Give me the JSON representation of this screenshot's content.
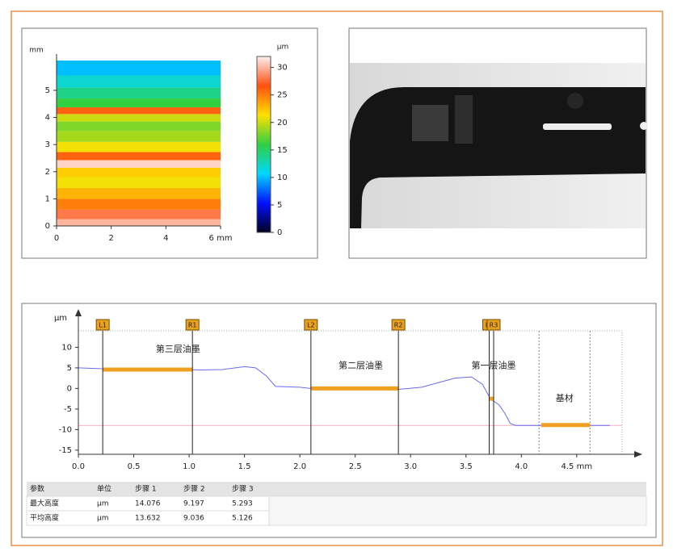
{
  "chart_data": [
    {
      "type": "heatmap",
      "y_label": "mm",
      "colorbar_label": "µm",
      "xlim": [
        0,
        6
      ],
      "xticks": [
        0,
        2,
        4,
        {
          "value": 6,
          "label": "6 mm"
        }
      ],
      "ylim": [
        0,
        6.1
      ],
      "yticks": [
        0,
        1,
        2,
        3,
        4,
        5
      ],
      "zlim": [
        0,
        32
      ],
      "zticks": [
        0,
        5,
        10,
        15,
        20,
        25,
        30
      ],
      "colorscale": [
        "#000020",
        "#0010ff",
        "#00d8ff",
        "#30d040",
        "#ffe000",
        "#ff5010",
        "#fff0f0"
      ],
      "y": [
        0.1,
        0.4,
        0.8,
        1.2,
        1.6,
        2.0,
        2.3,
        2.55,
        2.9,
        3.3,
        3.7,
        4.0,
        4.25,
        4.5,
        4.9,
        5.3,
        5.8
      ],
      "values": [
        30,
        28,
        25,
        23,
        21,
        22,
        31,
        26,
        21,
        19,
        18,
        20,
        26,
        16,
        14,
        12,
        10
      ]
    },
    {
      "type": "line",
      "y_label": "µm",
      "xlim": [
        0,
        4.91
      ],
      "xticks": [
        {
          "value": 0,
          "label": "0.0"
        },
        0.5,
        {
          "value": 1,
          "label": "1.0"
        },
        1.5,
        {
          "value": 2,
          "label": "2.0"
        },
        2.5,
        {
          "value": 3,
          "label": "3.0"
        },
        3.5,
        {
          "value": 4,
          "label": "4.0"
        },
        {
          "value": 4.5,
          "label": "4.5 mm"
        }
      ],
      "ylim": [
        -16,
        14
      ],
      "yticks": [
        10,
        5,
        0,
        -5,
        -10,
        -15
      ],
      "series": [
        {
          "color": "#6a6af0",
          "x": [
            0,
            0.2,
            0.5,
            1.0,
            1.1,
            1.3,
            1.5,
            1.6,
            1.7,
            1.78,
            2.0,
            2.1,
            2.5,
            2.9,
            3.1,
            3.4,
            3.55,
            3.65,
            3.72,
            3.8,
            3.85,
            3.9,
            3.95,
            4.2,
            4.8
          ],
          "values": [
            5,
            4.8,
            4.7,
            4.6,
            4.5,
            4.6,
            5.3,
            5,
            3,
            0.5,
            0.3,
            0,
            0,
            -0.2,
            0.3,
            2.5,
            2.8,
            1,
            -2.5,
            -4,
            -6,
            -8.5,
            -9,
            -9,
            -9
          ]
        }
      ],
      "reference_y": -9,
      "reference_color": "#f0b0c0",
      "cursors": [
        {
          "label": "L1",
          "x": 0.22
        },
        {
          "label": "R1",
          "x": 1.03
        },
        {
          "label": "L2",
          "x": 2.1
        },
        {
          "label": "R2",
          "x": 2.89
        },
        {
          "label": "L3",
          "x": 3.71
        },
        {
          "label": "R3",
          "x": 3.75
        }
      ],
      "cursor_color": "#e8a020",
      "fit_segments": [
        {
          "x": [
            0.22,
            1.03
          ],
          "y": 4.6
        },
        {
          "x": [
            2.1,
            2.89
          ],
          "y": 0
        },
        {
          "x": [
            3.71,
            3.75
          ],
          "y": -2.5
        },
        {
          "x": [
            4.18,
            4.62
          ],
          "y": -8.9
        }
      ],
      "fit_color": "#f0a020",
      "region_bounds": [
        4.16,
        4.62
      ],
      "annotations": [
        "第三层油墨",
        "第二层油墨",
        "第一层油墨",
        "基材"
      ]
    }
  ],
  "table": {
    "header": [
      "参数",
      "单位",
      "步骤 1",
      "步骤 2",
      "步骤 3"
    ],
    "rows": [
      [
        "最大高度",
        "µm",
        "14.076",
        "9.197",
        "5.293"
      ],
      [
        "平均高度",
        "µm",
        "13.632",
        "9.036",
        "5.126"
      ]
    ]
  }
}
